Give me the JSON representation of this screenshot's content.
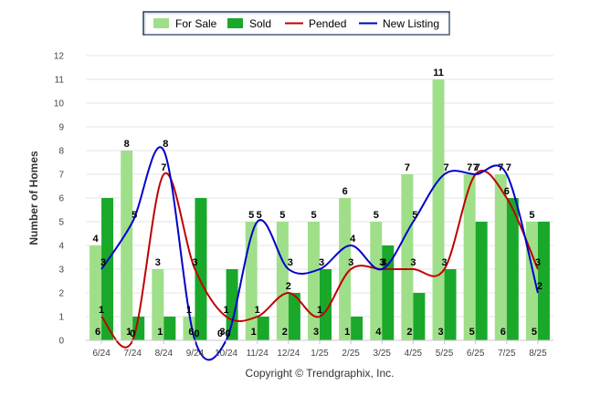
{
  "chart_data": {
    "type": "bar",
    "categories": [
      "6/24",
      "7/24",
      "8/24",
      "9/24",
      "10/24",
      "11/24",
      "12/24",
      "1/25",
      "2/25",
      "3/25",
      "4/25",
      "5/25",
      "6/25",
      "7/25",
      "8/25"
    ],
    "ylabel": "Number of Homes",
    "ylim": [
      0,
      12
    ],
    "yticks": [
      0,
      1,
      2,
      3,
      4,
      5,
      6,
      7,
      8,
      9,
      10,
      11,
      12
    ],
    "grid": true,
    "legend_position": "top",
    "credit": "Copyright © Trendgraphix, Inc.",
    "series": [
      {
        "name": "For Sale",
        "kind": "bar",
        "color": "#a0df8a",
        "values": [
          4,
          8,
          3,
          1,
          0,
          5,
          5,
          5,
          6,
          5,
          7,
          11,
          7,
          7,
          5
        ]
      },
      {
        "name": "Sold",
        "kind": "bar",
        "color": "#1aa82b",
        "values": [
          6,
          1,
          1,
          6,
          3,
          1,
          2,
          3,
          1,
          4,
          2,
          3,
          5,
          6,
          5
        ]
      },
      {
        "name": "Pended",
        "kind": "line",
        "color": "#c00000",
        "values": [
          1,
          0,
          7,
          3,
          1,
          1,
          2,
          1,
          3,
          3,
          3,
          3,
          7,
          6,
          3
        ]
      },
      {
        "name": "New Listing",
        "kind": "line",
        "color": "#0000cc",
        "values": [
          3,
          5,
          8,
          0,
          0,
          5,
          3,
          3,
          4,
          3,
          5,
          7,
          7,
          7,
          2
        ]
      }
    ]
  }
}
